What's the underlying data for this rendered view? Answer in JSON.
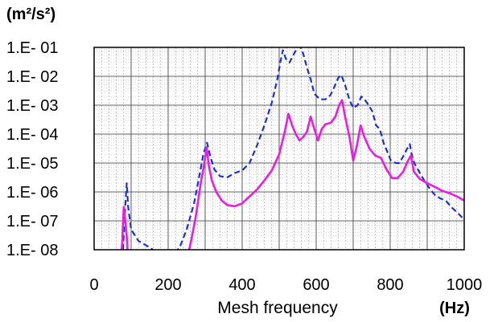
{
  "chart_data": {
    "type": "line",
    "y_unit": "(m²/s²)",
    "xlabel": "Mesh frequency",
    "x_unit": "(Hz)",
    "xlim": [
      0,
      1000
    ],
    "ylim": [
      1e-08,
      0.1
    ],
    "y_scale": "log",
    "grid": true,
    "x_ticks": [
      {
        "value": 0,
        "label": "0"
      },
      {
        "value": 200,
        "label": "200"
      },
      {
        "value": 400,
        "label": "400"
      },
      {
        "value": 600,
        "label": "600"
      },
      {
        "value": 800,
        "label": "800"
      },
      {
        "value": 1000,
        "label": "1000"
      }
    ],
    "y_ticks": [
      {
        "value": 0.1,
        "label": "1.E- 01"
      },
      {
        "value": 0.01,
        "label": "1.E- 02"
      },
      {
        "value": 0.001,
        "label": "1.E- 03"
      },
      {
        "value": 0.0001,
        "label": "1.E- 04"
      },
      {
        "value": 1e-05,
        "label": "1.E- 05"
      },
      {
        "value": 1e-06,
        "label": "1.E- 06"
      },
      {
        "value": 1e-07,
        "label": "1.E- 07"
      },
      {
        "value": 1e-08,
        "label": "1.E- 08"
      }
    ],
    "series": [
      {
        "color": "#1f2fd6",
        "style": "dashed",
        "points": [
          [
            78,
            1e-08
          ],
          [
            84,
            3e-07
          ],
          [
            88,
            2e-06
          ],
          [
            92,
            3e-07
          ],
          [
            100,
            5e-08
          ],
          [
            120,
            2e-08
          ],
          [
            150,
            1.2e-08
          ],
          [
            175,
            7e-09
          ],
          [
            200,
            6e-09
          ],
          [
            230,
            1.1e-08
          ],
          [
            250,
            5e-08
          ],
          [
            270,
            4e-07
          ],
          [
            285,
            4e-06
          ],
          [
            295,
            2e-05
          ],
          [
            305,
            5e-05
          ],
          [
            315,
            1.5e-05
          ],
          [
            325,
            6e-06
          ],
          [
            340,
            3.5e-06
          ],
          [
            360,
            3.2e-06
          ],
          [
            380,
            4.5e-06
          ],
          [
            400,
            5.5e-06
          ],
          [
            420,
            1e-05
          ],
          [
            440,
            4e-05
          ],
          [
            460,
            0.0002
          ],
          [
            480,
            0.0012
          ],
          [
            495,
            0.008
          ],
          [
            503,
            0.03
          ],
          [
            510,
            0.08
          ],
          [
            518,
            0.04
          ],
          [
            528,
            0.03
          ],
          [
            540,
            0.06
          ],
          [
            552,
            0.11
          ],
          [
            558,
            0.1
          ],
          [
            565,
            0.06
          ],
          [
            575,
            0.02
          ],
          [
            585,
            0.008
          ],
          [
            595,
            0.0025
          ],
          [
            610,
            0.0016
          ],
          [
            625,
            0.0016
          ],
          [
            638,
            0.0022
          ],
          [
            648,
            0.004
          ],
          [
            660,
            0.009
          ],
          [
            668,
            0.011
          ],
          [
            678,
            0.005
          ],
          [
            690,
            0.0015
          ],
          [
            700,
            0.0008
          ],
          [
            712,
            0.001
          ],
          [
            722,
            0.002
          ],
          [
            732,
            0.0015
          ],
          [
            742,
            0.001
          ],
          [
            752,
            0.0006
          ],
          [
            762,
            0.0002
          ],
          [
            772,
            0.00015
          ],
          [
            782,
            5e-05
          ],
          [
            792,
            2.5e-05
          ],
          [
            802,
            1.2e-05
          ],
          [
            815,
            1e-05
          ],
          [
            825,
            1e-05
          ],
          [
            838,
            2e-05
          ],
          [
            845,
            3e-05
          ],
          [
            853,
            4.5e-05
          ],
          [
            858,
            2e-05
          ],
          [
            865,
            1e-05
          ],
          [
            878,
            5e-06
          ],
          [
            892,
            2.5e-06
          ],
          [
            905,
            1.4e-06
          ],
          [
            920,
            8e-07
          ],
          [
            935,
            6e-07
          ],
          [
            950,
            5e-07
          ],
          [
            965,
            3e-07
          ],
          [
            980,
            2e-07
          ],
          [
            990,
            1.5e-07
          ],
          [
            1000,
            1.1e-07
          ]
        ]
      },
      {
        "color": "#e81ee0",
        "style": "solid",
        "points": [
          [
            72,
            4e-09
          ],
          [
            76,
            2e-08
          ],
          [
            80,
            3e-07
          ],
          [
            84,
            1e-07
          ],
          [
            88,
            3e-08
          ],
          [
            92,
            4e-09
          ],
          [
            250,
            4e-09
          ],
          [
            262,
            2e-08
          ],
          [
            275,
            1.5e-07
          ],
          [
            288,
            2e-06
          ],
          [
            298,
            1e-05
          ],
          [
            304,
            3.5e-05
          ],
          [
            310,
            8e-06
          ],
          [
            318,
            2.5e-06
          ],
          [
            330,
            1e-06
          ],
          [
            345,
            5e-07
          ],
          [
            360,
            3.5e-07
          ],
          [
            380,
            3.2e-07
          ],
          [
            400,
            4e-07
          ],
          [
            420,
            7e-07
          ],
          [
            440,
            1.2e-06
          ],
          [
            460,
            2.5e-06
          ],
          [
            480,
            5.5e-06
          ],
          [
            500,
            2e-05
          ],
          [
            515,
            0.00012
          ],
          [
            525,
            0.0005
          ],
          [
            535,
            0.0002
          ],
          [
            545,
            0.0001
          ],
          [
            555,
            6e-05
          ],
          [
            565,
            8e-05
          ],
          [
            575,
            0.00012
          ],
          [
            585,
            0.0004
          ],
          [
            595,
            0.00015
          ],
          [
            605,
            6e-05
          ],
          [
            615,
            0.00015
          ],
          [
            625,
            0.00022
          ],
          [
            640,
            0.00025
          ],
          [
            652,
            0.0004
          ],
          [
            662,
            0.001
          ],
          [
            670,
            0.0015
          ],
          [
            678,
            0.0004
          ],
          [
            690,
            8e-05
          ],
          [
            700,
            1.2e-05
          ],
          [
            710,
            4e-05
          ],
          [
            720,
            0.0002
          ],
          [
            730,
            8e-05
          ],
          [
            745,
            3e-05
          ],
          [
            760,
            1.8e-05
          ],
          [
            775,
            1.5e-05
          ],
          [
            790,
            6e-06
          ],
          [
            805,
            3e-06
          ],
          [
            820,
            3e-06
          ],
          [
            835,
            5e-06
          ],
          [
            848,
            1.2e-05
          ],
          [
            856,
            1.8e-05
          ],
          [
            864,
            5e-06
          ],
          [
            880,
            2.8e-06
          ],
          [
            900,
            2e-06
          ],
          [
            920,
            1.5e-06
          ],
          [
            940,
            1.1e-06
          ],
          [
            960,
            9e-07
          ],
          [
            980,
            7e-07
          ],
          [
            1000,
            5e-07
          ]
        ]
      }
    ]
  }
}
